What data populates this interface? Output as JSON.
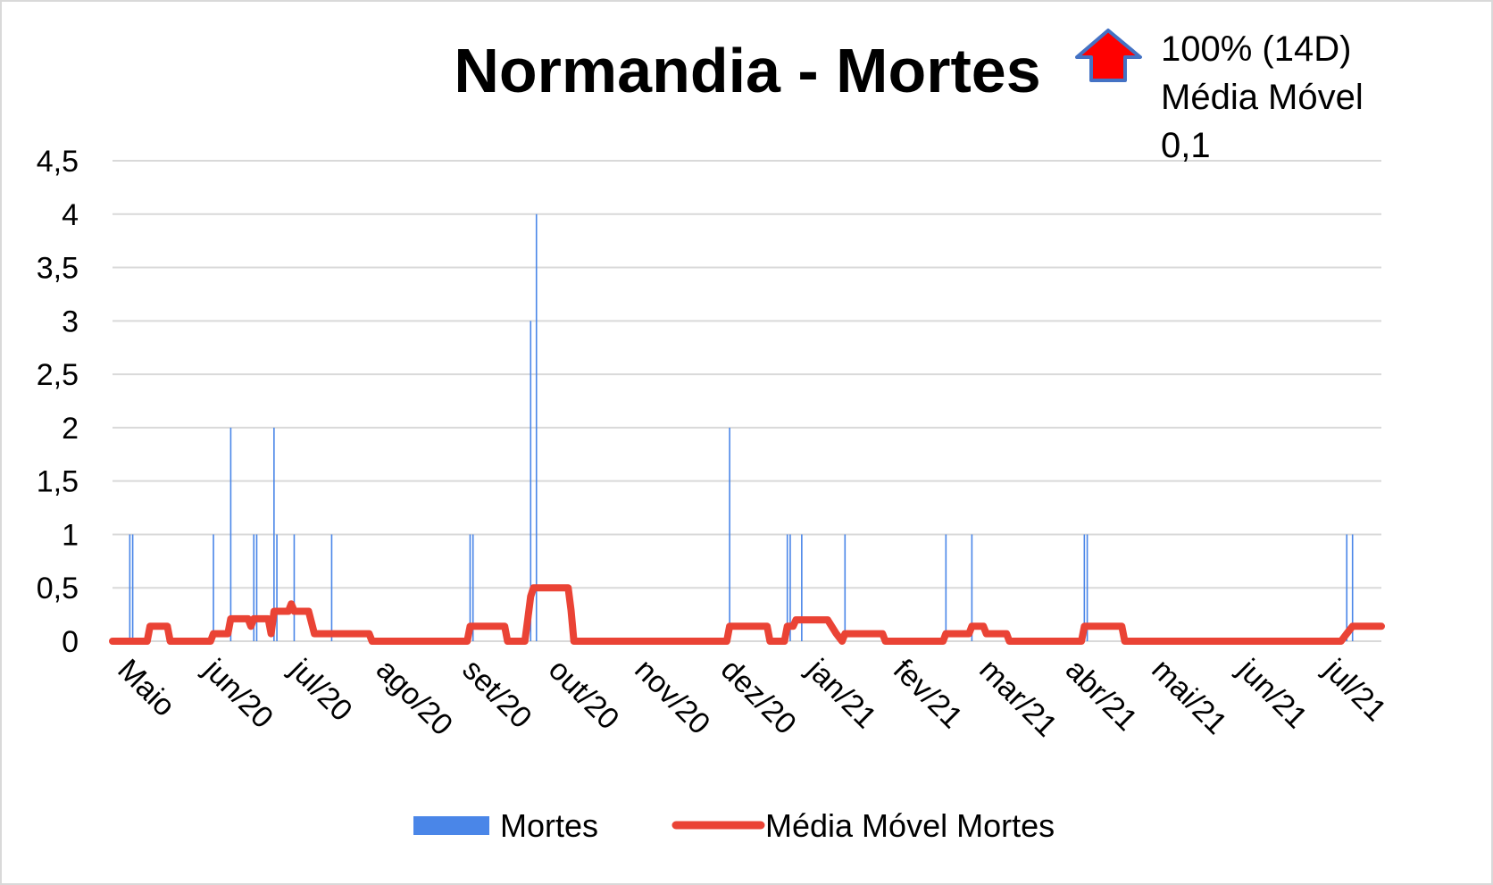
{
  "chart_data": {
    "type": "bar+line",
    "title": "Normandia - Mortes",
    "annotation": {
      "lines": [
        "100% (14D)",
        "Média Móvel",
        "0,1"
      ],
      "arrow": "up-arrow-icon",
      "arrow_fill": "#ff0000",
      "arrow_stroke": "#4472c4"
    },
    "x_labels": [
      "Maio",
      "jun/20",
      "jul/20",
      "ago/20",
      "set/20",
      "out/20",
      "nov/20",
      "dez/20",
      "jan/21",
      "fev/21",
      "mar/21",
      "abr/21",
      "mai/21",
      "jun/21",
      "jul/21"
    ],
    "y_ticks": [
      "0",
      "0,5",
      "1",
      "1,5",
      "2",
      "2,5",
      "3",
      "3,5",
      "4",
      "4,5"
    ],
    "y_tick_values": [
      0,
      0.5,
      1,
      1.5,
      2,
      2.5,
      3,
      3.5,
      4,
      4.5
    ],
    "ylim": [
      0,
      4.5
    ],
    "x_days_total": 440,
    "grid": true,
    "legend_position": "bottom",
    "series": [
      {
        "name": "Mortes",
        "kind": "bar",
        "color": "#4a86e8",
        "points": [
          {
            "day": 6,
            "value": 1
          },
          {
            "day": 7,
            "value": 1
          },
          {
            "day": 35,
            "value": 1
          },
          {
            "day": 41,
            "value": 2
          },
          {
            "day": 49,
            "value": 1
          },
          {
            "day": 50,
            "value": 1
          },
          {
            "day": 56,
            "value": 2
          },
          {
            "day": 57,
            "value": 1
          },
          {
            "day": 63,
            "value": 1
          },
          {
            "day": 76,
            "value": 1
          },
          {
            "day": 124,
            "value": 1
          },
          {
            "day": 125,
            "value": 1
          },
          {
            "day": 145,
            "value": 3
          },
          {
            "day": 147,
            "value": 4
          },
          {
            "day": 214,
            "value": 2
          },
          {
            "day": 234,
            "value": 1
          },
          {
            "day": 235,
            "value": 1
          },
          {
            "day": 239,
            "value": 1
          },
          {
            "day": 254,
            "value": 1
          },
          {
            "day": 289,
            "value": 1
          },
          {
            "day": 298,
            "value": 1
          },
          {
            "day": 337,
            "value": 1
          },
          {
            "day": 338,
            "value": 1
          },
          {
            "day": 428,
            "value": 1
          },
          {
            "day": 430,
            "value": 1
          }
        ]
      },
      {
        "name": "Média Móvel Mortes",
        "kind": "line",
        "color": "#ea4335",
        "points": [
          [
            0,
            0
          ],
          [
            12,
            0
          ],
          [
            13,
            0.14
          ],
          [
            19,
            0.14
          ],
          [
            20,
            0
          ],
          [
            34,
            0
          ],
          [
            35,
            0.07
          ],
          [
            40,
            0.07
          ],
          [
            41,
            0.21
          ],
          [
            47,
            0.21
          ],
          [
            48,
            0.14
          ],
          [
            49,
            0.21
          ],
          [
            54,
            0.21
          ],
          [
            55,
            0.07
          ],
          [
            56,
            0.28
          ],
          [
            61,
            0.28
          ],
          [
            62,
            0.35
          ],
          [
            63,
            0.28
          ],
          [
            68,
            0.28
          ],
          [
            70,
            0.07
          ],
          [
            89,
            0.07
          ],
          [
            90,
            0
          ],
          [
            123,
            0
          ],
          [
            124,
            0.14
          ],
          [
            136,
            0.14
          ],
          [
            137,
            0
          ],
          [
            143,
            0
          ],
          [
            144,
            0.21
          ],
          [
            145,
            0.42
          ],
          [
            146,
            0.5
          ],
          [
            158,
            0.5
          ],
          [
            159,
            0.29
          ],
          [
            160,
            0
          ],
          [
            213,
            0
          ],
          [
            214,
            0.14
          ],
          [
            227,
            0.14
          ],
          [
            228,
            0
          ],
          [
            233,
            0
          ],
          [
            234,
            0.14
          ],
          [
            236,
            0.14
          ],
          [
            237,
            0.2
          ],
          [
            248,
            0.2
          ],
          [
            251,
            0.07
          ],
          [
            253,
            0
          ],
          [
            254,
            0.07
          ],
          [
            267,
            0.07
          ],
          [
            268,
            0
          ],
          [
            288,
            0
          ],
          [
            289,
            0.07
          ],
          [
            297,
            0.07
          ],
          [
            298,
            0.14
          ],
          [
            302,
            0.14
          ],
          [
            303,
            0.07
          ],
          [
            310,
            0.07
          ],
          [
            311,
            0
          ],
          [
            336,
            0
          ],
          [
            337,
            0.14
          ],
          [
            350,
            0.14
          ],
          [
            351,
            0
          ],
          [
            426,
            0
          ],
          [
            428,
            0.07
          ],
          [
            430,
            0.14
          ],
          [
            440,
            0.14
          ]
        ]
      }
    ]
  }
}
